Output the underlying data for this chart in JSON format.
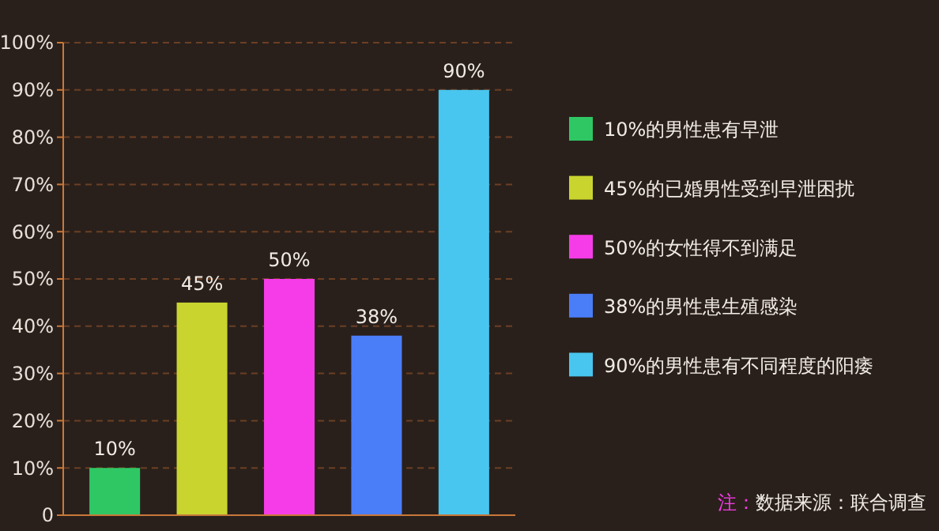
{
  "chart_data": {
    "type": "bar",
    "categories": [
      null,
      null,
      null,
      null,
      null
    ],
    "series": [
      {
        "name": "10%的男性患有早泄",
        "color": "#2fc764",
        "values": [
          10,
          null,
          null,
          null,
          null
        ]
      },
      {
        "name": "45%的已婚男性受到早泄困扰",
        "color": "#c9d42f",
        "values": [
          null,
          45,
          null,
          null,
          null
        ]
      },
      {
        "name": "50%的女性得不到满足",
        "color": "#f53ce8",
        "values": [
          null,
          null,
          50,
          null,
          null
        ]
      },
      {
        "name": "38%的男性患生殖感染",
        "color": "#4a7df8",
        "values": [
          null,
          null,
          null,
          38,
          null
        ]
      },
      {
        "name": "90%的男性患有不同程度的阳痿",
        "color": "#48c6ef",
        "values": [
          null,
          null,
          null,
          null,
          90
        ]
      }
    ],
    "ylim": [
      0,
      100
    ],
    "yticks": [
      0,
      {
        "value": 10,
        "label": "10%"
      },
      {
        "value": 20,
        "label": "20%"
      },
      {
        "value": 30,
        "label": "30%"
      },
      {
        "value": 40,
        "label": "40%"
      },
      {
        "value": 50,
        "label": "50%"
      },
      {
        "value": 60,
        "label": "60%"
      },
      {
        "value": 70,
        "label": "70%"
      },
      {
        "value": 80,
        "label": "80%"
      },
      {
        "value": 90,
        "label": "90%"
      },
      {
        "value": 100,
        "label": "100%"
      }
    ],
    "value_labels": [
      "10%",
      "45%",
      "50%",
      "38%",
      "90%"
    ],
    "grid": "y",
    "legend": "right",
    "annotations": [
      "注：",
      "数据来源：联合调查"
    ]
  }
}
